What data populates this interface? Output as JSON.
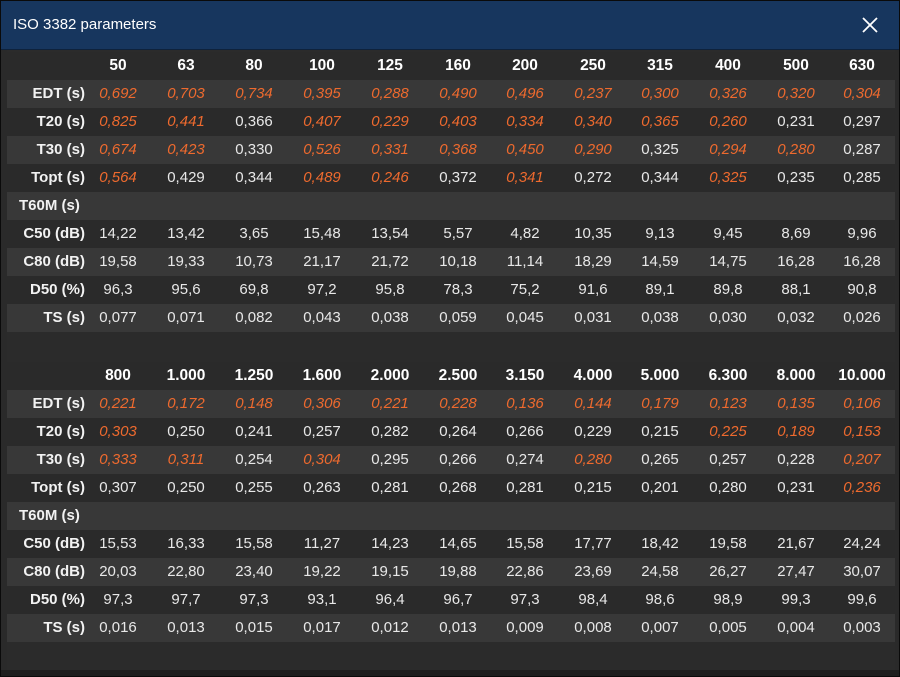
{
  "window": {
    "title": "ISO 3382 parameters",
    "close_icon": "close-icon"
  },
  "colors": {
    "titlebar": "#17365e",
    "highlight": "#ee6a2e",
    "row_light": "#383838",
    "row_dark": "#2a2a2a"
  },
  "tables": [
    {
      "header": [
        "50",
        "63",
        "80",
        "100",
        "125",
        "160",
        "200",
        "250",
        "315",
        "400",
        "500",
        "630"
      ],
      "rows": [
        {
          "label": "EDT (s)",
          "values": [
            "0,692",
            "0,703",
            "0,734",
            "0,395",
            "0,288",
            "0,490",
            "0,496",
            "0,237",
            "0,300",
            "0,326",
            "0,320",
            "0,304"
          ],
          "highlight": [
            true,
            true,
            true,
            true,
            true,
            true,
            true,
            true,
            true,
            true,
            true,
            true
          ]
        },
        {
          "label": "T20 (s)",
          "values": [
            "0,825",
            "0,441",
            "0,366",
            "0,407",
            "0,229",
            "0,403",
            "0,334",
            "0,340",
            "0,365",
            "0,260",
            "0,231",
            "0,297"
          ],
          "highlight": [
            true,
            true,
            false,
            true,
            true,
            true,
            true,
            true,
            true,
            true,
            false,
            false
          ]
        },
        {
          "label": "T30 (s)",
          "values": [
            "0,674",
            "0,423",
            "0,330",
            "0,526",
            "0,331",
            "0,368",
            "0,450",
            "0,290",
            "0,325",
            "0,294",
            "0,280",
            "0,287"
          ],
          "highlight": [
            true,
            true,
            false,
            true,
            true,
            true,
            true,
            true,
            false,
            true,
            true,
            false
          ]
        },
        {
          "label": "Topt (s)",
          "values": [
            "0,564",
            "0,429",
            "0,344",
            "0,489",
            "0,246",
            "0,372",
            "0,341",
            "0,272",
            "0,344",
            "0,325",
            "0,235",
            "0,285"
          ],
          "highlight": [
            true,
            false,
            false,
            true,
            true,
            false,
            true,
            false,
            false,
            true,
            false,
            false
          ]
        },
        {
          "label": "T60M (s)",
          "values": [
            "",
            "",
            "",
            "",
            "",
            "",
            "",
            "",
            "",
            "",
            "",
            ""
          ],
          "highlight": [
            false,
            false,
            false,
            false,
            false,
            false,
            false,
            false,
            false,
            false,
            false,
            false
          ]
        },
        {
          "label": "C50 (dB)",
          "values": [
            "14,22",
            "13,42",
            "3,65",
            "15,48",
            "13,54",
            "5,57",
            "4,82",
            "10,35",
            "9,13",
            "9,45",
            "8,69",
            "9,96"
          ],
          "highlight": [
            false,
            false,
            false,
            false,
            false,
            false,
            false,
            false,
            false,
            false,
            false,
            false
          ]
        },
        {
          "label": "C80 (dB)",
          "values": [
            "19,58",
            "19,33",
            "10,73",
            "21,17",
            "21,72",
            "10,18",
            "11,14",
            "18,29",
            "14,59",
            "14,75",
            "16,28",
            "16,28"
          ],
          "highlight": [
            false,
            false,
            false,
            false,
            false,
            false,
            false,
            false,
            false,
            false,
            false,
            false
          ]
        },
        {
          "label": "D50 (%)",
          "values": [
            "96,3",
            "95,6",
            "69,8",
            "97,2",
            "95,8",
            "78,3",
            "75,2",
            "91,6",
            "89,1",
            "89,8",
            "88,1",
            "90,8"
          ],
          "highlight": [
            false,
            false,
            false,
            false,
            false,
            false,
            false,
            false,
            false,
            false,
            false,
            false
          ]
        },
        {
          "label": "TS (s)",
          "values": [
            "0,077",
            "0,071",
            "0,082",
            "0,043",
            "0,038",
            "0,059",
            "0,045",
            "0,031",
            "0,038",
            "0,030",
            "0,032",
            "0,026"
          ],
          "highlight": [
            false,
            false,
            false,
            false,
            false,
            false,
            false,
            false,
            false,
            false,
            false,
            false
          ]
        }
      ]
    },
    {
      "header": [
        "800",
        "1.000",
        "1.250",
        "1.600",
        "2.000",
        "2.500",
        "3.150",
        "4.000",
        "5.000",
        "6.300",
        "8.000",
        "10.000"
      ],
      "rows": [
        {
          "label": "EDT (s)",
          "values": [
            "0,221",
            "0,172",
            "0,148",
            "0,306",
            "0,221",
            "0,228",
            "0,136",
            "0,144",
            "0,179",
            "0,123",
            "0,135",
            "0,106"
          ],
          "highlight": [
            true,
            true,
            true,
            true,
            true,
            true,
            true,
            true,
            true,
            true,
            true,
            true
          ]
        },
        {
          "label": "T20 (s)",
          "values": [
            "0,303",
            "0,250",
            "0,241",
            "0,257",
            "0,282",
            "0,264",
            "0,266",
            "0,229",
            "0,215",
            "0,225",
            "0,189",
            "0,153"
          ],
          "highlight": [
            true,
            false,
            false,
            false,
            false,
            false,
            false,
            false,
            false,
            true,
            true,
            true
          ]
        },
        {
          "label": "T30 (s)",
          "values": [
            "0,333",
            "0,311",
            "0,254",
            "0,304",
            "0,295",
            "0,266",
            "0,274",
            "0,280",
            "0,265",
            "0,257",
            "0,228",
            "0,207"
          ],
          "highlight": [
            true,
            true,
            false,
            true,
            false,
            false,
            false,
            true,
            false,
            false,
            false,
            true
          ]
        },
        {
          "label": "Topt (s)",
          "values": [
            "0,307",
            "0,250",
            "0,255",
            "0,263",
            "0,281",
            "0,268",
            "0,281",
            "0,215",
            "0,201",
            "0,280",
            "0,231",
            "0,236"
          ],
          "highlight": [
            false,
            false,
            false,
            false,
            false,
            false,
            false,
            false,
            false,
            false,
            false,
            true
          ]
        },
        {
          "label": "T60M (s)",
          "values": [
            "",
            "",
            "",
            "",
            "",
            "",
            "",
            "",
            "",
            "",
            "",
            ""
          ],
          "highlight": [
            false,
            false,
            false,
            false,
            false,
            false,
            false,
            false,
            false,
            false,
            false,
            false
          ]
        },
        {
          "label": "C50 (dB)",
          "values": [
            "15,53",
            "16,33",
            "15,58",
            "11,27",
            "14,23",
            "14,65",
            "15,58",
            "17,77",
            "18,42",
            "19,58",
            "21,67",
            "24,24"
          ],
          "highlight": [
            false,
            false,
            false,
            false,
            false,
            false,
            false,
            false,
            false,
            false,
            false,
            false
          ]
        },
        {
          "label": "C80 (dB)",
          "values": [
            "20,03",
            "22,80",
            "23,40",
            "19,22",
            "19,15",
            "19,88",
            "22,86",
            "23,69",
            "24,58",
            "26,27",
            "27,47",
            "30,07"
          ],
          "highlight": [
            false,
            false,
            false,
            false,
            false,
            false,
            false,
            false,
            false,
            false,
            false,
            false
          ]
        },
        {
          "label": "D50 (%)",
          "values": [
            "97,3",
            "97,7",
            "97,3",
            "93,1",
            "96,4",
            "96,7",
            "97,3",
            "98,4",
            "98,6",
            "98,9",
            "99,3",
            "99,6"
          ],
          "highlight": [
            false,
            false,
            false,
            false,
            false,
            false,
            false,
            false,
            false,
            false,
            false,
            false
          ]
        },
        {
          "label": "TS (s)",
          "values": [
            "0,016",
            "0,013",
            "0,015",
            "0,017",
            "0,012",
            "0,013",
            "0,009",
            "0,008",
            "0,007",
            "0,005",
            "0,004",
            "0,003"
          ],
          "highlight": [
            false,
            false,
            false,
            false,
            false,
            false,
            false,
            false,
            false,
            false,
            false,
            false
          ]
        }
      ]
    }
  ]
}
